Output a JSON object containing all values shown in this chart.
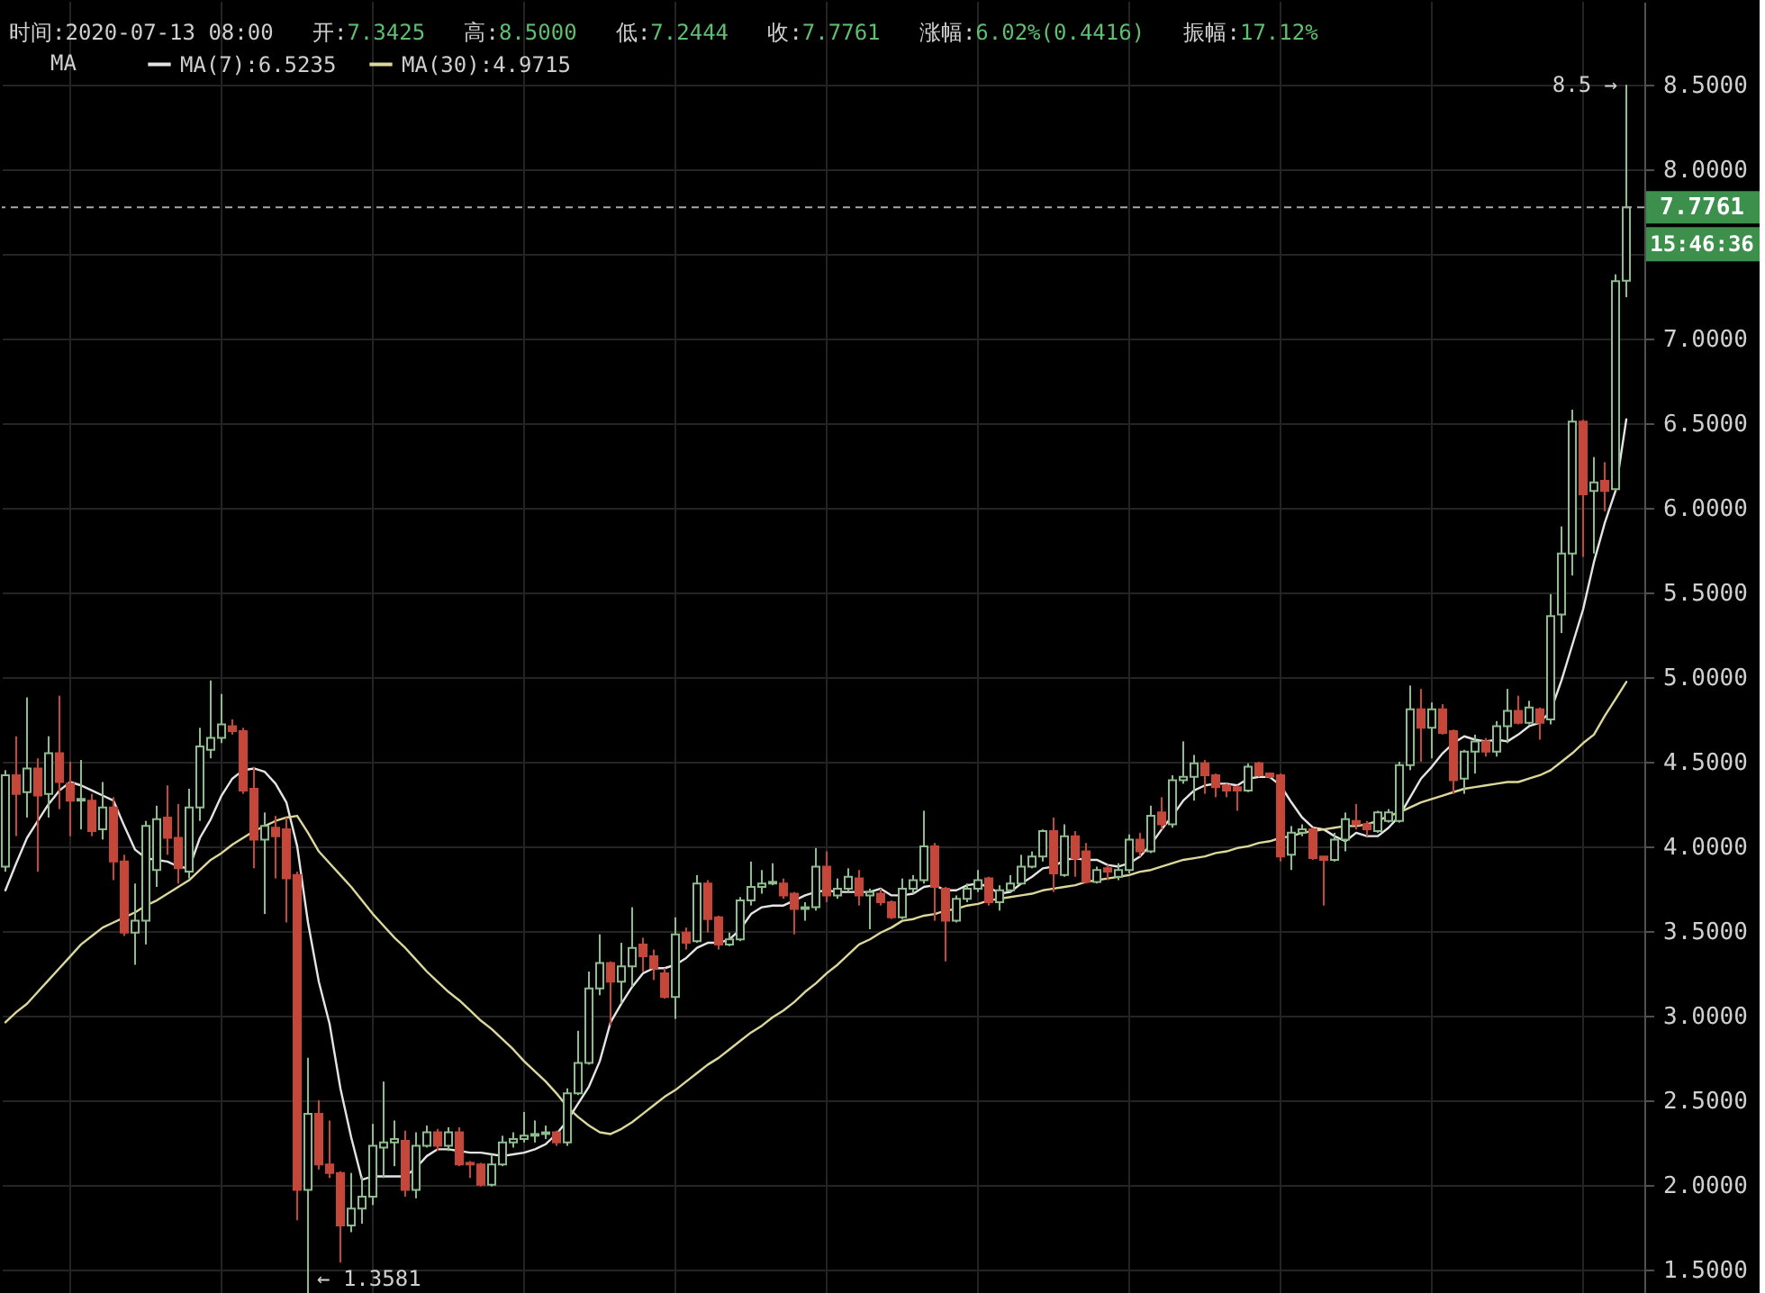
{
  "chart_data": {
    "type": "candlestick",
    "categories": [
      null,
      null,
      null,
      null,
      null,
      null,
      null,
      null,
      null,
      null,
      null,
      null,
      null,
      null,
      null,
      null,
      null,
      null,
      null,
      null,
      null,
      null,
      null,
      null,
      null,
      null,
      null,
      null,
      null,
      null,
      null,
      null,
      null,
      null,
      null,
      null,
      null,
      null,
      null,
      null,
      null,
      null,
      null,
      null,
      null,
      null,
      null,
      null,
      null,
      null,
      null,
      null,
      null,
      null,
      null,
      null,
      null,
      null,
      null,
      null,
      null,
      null,
      null,
      null,
      null,
      null,
      null,
      null,
      null,
      null,
      null,
      null,
      null,
      null,
      null,
      null,
      null,
      null,
      null,
      null,
      null,
      null,
      null,
      null,
      null,
      null,
      null,
      null,
      null,
      null,
      null,
      null,
      null,
      null,
      null,
      null,
      null,
      null,
      null,
      null,
      null,
      null,
      null,
      null,
      null,
      null,
      null,
      null,
      null,
      null,
      null,
      null,
      null,
      null,
      null,
      null,
      null,
      null,
      null,
      null,
      null,
      null,
      null,
      null,
      null,
      null,
      null,
      null,
      null,
      null,
      null,
      null,
      null,
      null,
      null,
      null,
      null,
      null,
      null,
      null,
      null,
      null,
      null,
      null,
      null,
      null,
      null,
      null,
      null,
      null,
      null
    ],
    "ohlc": [
      [
        3.88,
        4.45,
        3.85,
        4.42
      ],
      [
        4.42,
        4.65,
        4.06,
        4.31
      ],
      [
        4.32,
        4.88,
        4.17,
        4.46
      ],
      [
        4.46,
        4.52,
        3.85,
        4.3
      ],
      [
        4.31,
        4.65,
        4.17,
        4.55
      ],
      [
        4.55,
        4.89,
        4.22,
        4.38
      ],
      [
        4.37,
        4.5,
        4.06,
        4.27
      ],
      [
        4.27,
        4.51,
        4.1,
        4.28
      ],
      [
        4.27,
        4.31,
        4.06,
        4.09
      ],
      [
        4.1,
        4.38,
        4.04,
        4.23
      ],
      [
        4.23,
        4.29,
        3.8,
        3.91
      ],
      [
        3.91,
        3.95,
        3.47,
        3.49
      ],
      [
        3.49,
        3.78,
        3.3,
        3.56
      ],
      [
        3.56,
        4.15,
        3.42,
        4.12
      ],
      [
        3.86,
        4.24,
        3.76,
        4.16
      ],
      [
        4.17,
        4.36,
        3.95,
        4.05
      ],
      [
        4.05,
        4.25,
        3.78,
        3.87
      ],
      [
        3.85,
        4.34,
        3.81,
        4.23
      ],
      [
        4.23,
        4.7,
        4.15,
        4.59
      ],
      [
        4.57,
        4.98,
        4.52,
        4.64
      ],
      [
        4.64,
        4.9,
        4.61,
        4.72
      ],
      [
        4.71,
        4.75,
        4.66,
        4.68
      ],
      [
        4.68,
        4.7,
        4.31,
        4.33
      ],
      [
        4.34,
        4.47,
        3.87,
        4.04
      ],
      [
        4.04,
        4.2,
        3.6,
        4.12
      ],
      [
        4.11,
        4.18,
        3.81,
        4.06
      ],
      [
        4.1,
        4.17,
        3.55,
        3.81
      ],
      [
        3.83,
        3.85,
        1.79,
        1.97
      ],
      [
        1.97,
        2.75,
        1.3581,
        2.42
      ],
      [
        2.42,
        2.5,
        2.09,
        2.12
      ],
      [
        2.12,
        2.38,
        2.04,
        2.07
      ],
      [
        2.07,
        2.08,
        1.54,
        1.76
      ],
      [
        1.76,
        2.07,
        1.72,
        1.86
      ],
      [
        1.86,
        2.05,
        1.77,
        1.93
      ],
      [
        1.93,
        2.36,
        1.88,
        2.23
      ],
      [
        2.22,
        2.61,
        2.04,
        2.25
      ],
      [
        2.25,
        2.38,
        2.11,
        2.27
      ],
      [
        2.26,
        2.32,
        1.93,
        1.97
      ],
      [
        1.97,
        2.31,
        1.92,
        2.23
      ],
      [
        2.23,
        2.35,
        2.22,
        2.31
      ],
      [
        2.31,
        2.33,
        2.2,
        2.23
      ],
      [
        2.23,
        2.34,
        2.2,
        2.31
      ],
      [
        2.31,
        2.34,
        2.11,
        2.12
      ],
      [
        2.13,
        2.14,
        2.04,
        2.12
      ],
      [
        2.12,
        2.13,
        1.99,
        2.0
      ],
      [
        2.0,
        2.18,
        1.99,
        2.12
      ],
      [
        2.12,
        2.29,
        2.11,
        2.25
      ],
      [
        2.25,
        2.31,
        2.22,
        2.27
      ],
      [
        2.27,
        2.43,
        2.25,
        2.29
      ],
      [
        2.29,
        2.38,
        2.25,
        2.3
      ],
      [
        2.3,
        2.35,
        2.27,
        2.31
      ],
      [
        2.31,
        2.32,
        2.23,
        2.25
      ],
      [
        2.25,
        2.57,
        2.23,
        2.54
      ],
      [
        2.54,
        2.91,
        2.53,
        2.72
      ],
      [
        2.72,
        3.26,
        2.71,
        3.16
      ],
      [
        3.16,
        3.48,
        3.12,
        3.31
      ],
      [
        3.31,
        3.32,
        2.94,
        3.2
      ],
      [
        3.2,
        3.43,
        3.07,
        3.29
      ],
      [
        3.29,
        3.64,
        3.17,
        3.4
      ],
      [
        3.42,
        3.46,
        3.26,
        3.35
      ],
      [
        3.35,
        3.39,
        3.21,
        3.28
      ],
      [
        3.25,
        3.28,
        3.1,
        3.11
      ],
      [
        3.11,
        3.58,
        2.98,
        3.48
      ],
      [
        3.49,
        3.52,
        3.39,
        3.43
      ],
      [
        3.44,
        3.83,
        3.43,
        3.78
      ],
      [
        3.78,
        3.8,
        3.49,
        3.57
      ],
      [
        3.58,
        3.59,
        3.39,
        3.42
      ],
      [
        3.42,
        3.49,
        3.41,
        3.45
      ],
      [
        3.45,
        3.7,
        3.44,
        3.68
      ],
      [
        3.68,
        3.91,
        3.65,
        3.76
      ],
      [
        3.76,
        3.86,
        3.72,
        3.78
      ],
      [
        3.78,
        3.9,
        3.77,
        3.79
      ],
      [
        3.78,
        3.81,
        3.69,
        3.71
      ],
      [
        3.72,
        3.73,
        3.48,
        3.63
      ],
      [
        3.63,
        3.67,
        3.56,
        3.64
      ],
      [
        3.64,
        3.99,
        3.62,
        3.88
      ],
      [
        3.88,
        3.97,
        3.67,
        3.71
      ],
      [
        3.71,
        3.81,
        3.69,
        3.75
      ],
      [
        3.75,
        3.87,
        3.73,
        3.82
      ],
      [
        3.81,
        3.86,
        3.65,
        3.71
      ],
      [
        3.71,
        3.75,
        3.51,
        3.73
      ],
      [
        3.72,
        3.75,
        3.65,
        3.67
      ],
      [
        3.67,
        3.68,
        3.57,
        3.58
      ],
      [
        3.58,
        3.81,
        3.57,
        3.75
      ],
      [
        3.75,
        3.83,
        3.72,
        3.8
      ],
      [
        3.8,
        4.21,
        3.78,
        4.0
      ],
      [
        4.0,
        4.02,
        3.56,
        3.76
      ],
      [
        3.75,
        3.76,
        3.32,
        3.56
      ],
      [
        3.56,
        3.71,
        3.55,
        3.69
      ],
      [
        3.69,
        3.78,
        3.67,
        3.75
      ],
      [
        3.75,
        3.86,
        3.73,
        3.8
      ],
      [
        3.81,
        3.82,
        3.65,
        3.67
      ],
      [
        3.67,
        3.77,
        3.62,
        3.74
      ],
      [
        3.74,
        3.83,
        3.73,
        3.78
      ],
      [
        3.78,
        3.95,
        3.78,
        3.88
      ],
      [
        3.88,
        3.97,
        3.87,
        3.94
      ],
      [
        3.94,
        4.1,
        3.91,
        4.09
      ],
      [
        4.09,
        4.17,
        3.73,
        3.84
      ],
      [
        3.83,
        4.13,
        3.82,
        4.06
      ],
      [
        4.06,
        4.09,
        3.82,
        3.93
      ],
      [
        3.97,
        4.02,
        3.78,
        3.79
      ],
      [
        3.79,
        3.88,
        3.78,
        3.86
      ],
      [
        3.87,
        3.89,
        3.8,
        3.85
      ],
      [
        3.82,
        3.9,
        3.8,
        3.86
      ],
      [
        3.86,
        4.07,
        3.84,
        4.04
      ],
      [
        4.04,
        4.08,
        3.94,
        3.97
      ],
      [
        3.97,
        4.24,
        3.96,
        4.18
      ],
      [
        4.2,
        4.29,
        4.1,
        4.13
      ],
      [
        4.13,
        4.42,
        4.11,
        4.39
      ],
      [
        4.39,
        4.62,
        4.37,
        4.41
      ],
      [
        4.41,
        4.54,
        4.27,
        4.49
      ],
      [
        4.49,
        4.51,
        4.31,
        4.42
      ],
      [
        4.42,
        4.43,
        4.29,
        4.35
      ],
      [
        4.36,
        4.37,
        4.29,
        4.33
      ],
      [
        4.35,
        4.36,
        4.21,
        4.33
      ],
      [
        4.33,
        4.49,
        4.32,
        4.47
      ],
      [
        4.49,
        4.5,
        4.41,
        4.42
      ],
      [
        4.43,
        4.43,
        4.4,
        4.41
      ],
      [
        4.42,
        4.43,
        3.91,
        3.94
      ],
      [
        3.95,
        4.12,
        3.86,
        4.08
      ],
      [
        4.08,
        4.13,
        4.06,
        4.1
      ],
      [
        4.1,
        4.11,
        3.92,
        3.93
      ],
      [
        3.94,
        3.94,
        3.65,
        3.92
      ],
      [
        3.92,
        4.08,
        3.91,
        4.04
      ],
      [
        4.04,
        4.2,
        3.97,
        4.16
      ],
      [
        4.15,
        4.25,
        4.1,
        4.13
      ],
      [
        4.13,
        4.15,
        4.06,
        4.1
      ],
      [
        4.09,
        4.21,
        4.08,
        4.2
      ],
      [
        4.15,
        4.22,
        4.14,
        4.2
      ],
      [
        4.15,
        4.5,
        4.14,
        4.48
      ],
      [
        4.48,
        4.95,
        4.45,
        4.81
      ],
      [
        4.81,
        4.93,
        4.5,
        4.7
      ],
      [
        4.7,
        4.85,
        4.52,
        4.81
      ],
      [
        4.81,
        4.84,
        4.66,
        4.67
      ],
      [
        4.68,
        4.69,
        4.31,
        4.39
      ],
      [
        4.4,
        4.57,
        4.31,
        4.56
      ],
      [
        4.56,
        4.66,
        4.43,
        4.62
      ],
      [
        4.62,
        4.64,
        4.53,
        4.56
      ],
      [
        4.56,
        4.74,
        4.53,
        4.71
      ],
      [
        4.71,
        4.93,
        4.61,
        4.8
      ],
      [
        4.8,
        4.89,
        4.72,
        4.73
      ],
      [
        4.73,
        4.86,
        4.72,
        4.82
      ],
      [
        4.81,
        4.82,
        4.63,
        4.73
      ],
      [
        4.75,
        5.49,
        4.72,
        5.36
      ],
      [
        5.37,
        5.89,
        5.26,
        5.73
      ],
      [
        5.73,
        6.58,
        5.6,
        6.51
      ],
      [
        6.51,
        6.52,
        5.71,
        6.08
      ],
      [
        6.1,
        6.3,
        5.73,
        6.15
      ],
      [
        6.16,
        6.27,
        5.98,
        6.1
      ],
      [
        6.11,
        7.38,
        6.1,
        7.34
      ],
      [
        7.3425,
        8.5,
        7.2444,
        7.7761
      ]
    ],
    "colors": [
      "#8dbd8d",
      "#c4473a",
      "#8dbd8d",
      "#c4473a",
      "#8dbd8d",
      "#c4473a",
      "#c4473a",
      "#8dbd8d",
      "#c4473a",
      "#8dbd8d",
      "#c4473a",
      "#c4473a",
      "#8dbd8d",
      "#8dbd8d",
      "#8dbd8d",
      "#c4473a",
      "#c4473a",
      "#8dbd8d",
      "#8dbd8d",
      "#8dbd8d",
      "#8dbd8d",
      "#c4473a",
      "#c4473a",
      "#c4473a",
      "#8dbd8d",
      "#c4473a",
      "#c4473a",
      "#c4473a",
      "#8dbd8d",
      "#c4473a",
      "#c4473a",
      "#c4473a",
      "#8dbd8d",
      "#8dbd8d",
      "#8dbd8d",
      "#8dbd8d",
      "#8dbd8d",
      "#c4473a",
      "#8dbd8d",
      "#8dbd8d",
      "#c4473a",
      "#8dbd8d",
      "#c4473a",
      "#c4473a",
      "#c4473a",
      "#8dbd8d",
      "#8dbd8d",
      "#8dbd8d",
      "#8dbd8d",
      "#8dbd8d",
      "#8dbd8d",
      "#c4473a",
      "#8dbd8d",
      "#8dbd8d",
      "#8dbd8d",
      "#8dbd8d",
      "#c4473a",
      "#8dbd8d",
      "#8dbd8d",
      "#c4473a",
      "#c4473a",
      "#c4473a",
      "#8dbd8d",
      "#c4473a",
      "#8dbd8d",
      "#c4473a",
      "#c4473a",
      "#8dbd8d",
      "#8dbd8d",
      "#8dbd8d",
      "#8dbd8d",
      "#8dbd8d",
      "#c4473a",
      "#c4473a",
      "#8dbd8d",
      "#8dbd8d",
      "#c4473a",
      "#8dbd8d",
      "#8dbd8d",
      "#c4473a",
      "#8dbd8d",
      "#c4473a",
      "#c4473a",
      "#8dbd8d",
      "#8dbd8d",
      "#8dbd8d",
      "#c4473a",
      "#c4473a",
      "#8dbd8d",
      "#8dbd8d",
      "#8dbd8d",
      "#c4473a",
      "#8dbd8d",
      "#8dbd8d",
      "#8dbd8d",
      "#8dbd8d",
      "#8dbd8d",
      "#c4473a",
      "#8dbd8d",
      "#c4473a",
      "#c4473a",
      "#8dbd8d",
      "#c4473a",
      "#8dbd8d",
      "#8dbd8d",
      "#c4473a",
      "#8dbd8d",
      "#c4473a",
      "#8dbd8d",
      "#8dbd8d",
      "#8dbd8d",
      "#c4473a",
      "#c4473a",
      "#c4473a",
      "#c4473a",
      "#8dbd8d",
      "#c4473a",
      "#c4473a",
      "#c4473a",
      "#8dbd8d",
      "#8dbd8d",
      "#c4473a",
      "#c4473a",
      "#8dbd8d",
      "#8dbd8d",
      "#c4473a",
      "#c4473a",
      "#8dbd8d",
      "#8dbd8d",
      "#8dbd8d",
      "#8dbd8d",
      "#c4473a",
      "#8dbd8d",
      "#c4473a",
      "#c4473a",
      "#8dbd8d",
      "#8dbd8d",
      "#c4473a",
      "#8dbd8d",
      "#8dbd8d",
      "#c4473a",
      "#8dbd8d",
      "#c4473a",
      "#8dbd8d",
      "#8dbd8d",
      "#8dbd8d",
      "#c4473a",
      "#8dbd8d",
      "#c4473a",
      "#8dbd8d",
      "#8dbd8d"
    ],
    "series": [
      {
        "type": "line",
        "name": "MA(7):6.5235",
        "color": "#e4e4e4",
        "values": [
          3.74,
          3.9,
          4.05,
          4.15,
          4.25,
          4.33,
          4.38,
          4.36,
          4.33,
          4.3,
          4.27,
          4.12,
          3.98,
          3.93,
          3.92,
          3.91,
          3.88,
          3.87,
          4.05,
          4.16,
          4.3,
          4.4,
          4.45,
          4.46,
          4.44,
          4.37,
          4.26,
          4.0,
          3.55,
          3.2,
          2.95,
          2.57,
          2.28,
          2.03,
          2.05,
          2.05,
          2.05,
          2.05,
          2.1,
          2.17,
          2.21,
          2.21,
          2.2,
          2.19,
          2.19,
          2.18,
          2.17,
          2.18,
          2.19,
          2.21,
          2.24,
          2.3,
          2.38,
          2.48,
          2.58,
          2.73,
          2.96,
          3.07,
          3.17,
          3.25,
          3.28,
          3.28,
          3.3,
          3.34,
          3.4,
          3.43,
          3.43,
          3.45,
          3.51,
          3.6,
          3.64,
          3.65,
          3.65,
          3.68,
          3.71,
          3.73,
          3.74,
          3.73,
          3.73,
          3.73,
          3.73,
          3.75,
          3.71,
          3.71,
          3.72,
          3.76,
          3.77,
          3.74,
          3.74,
          3.77,
          3.78,
          3.76,
          3.72,
          3.73,
          3.78,
          3.82,
          3.87,
          3.88,
          3.92,
          3.93,
          3.92,
          3.92,
          3.89,
          3.88,
          3.9,
          3.94,
          4.01,
          4.1,
          4.18,
          4.27,
          4.33,
          4.36,
          4.37,
          4.37,
          4.36,
          4.4,
          4.41,
          4.41,
          4.36,
          4.26,
          4.17,
          4.11,
          4.1,
          4.06,
          4.03,
          4.08,
          4.06,
          4.06,
          4.11,
          4.18,
          4.29,
          4.4,
          4.47,
          4.55,
          4.61,
          4.65,
          4.63,
          4.62,
          4.63,
          4.62,
          4.66,
          4.71,
          4.73,
          4.8,
          4.98,
          5.19,
          5.4,
          5.68,
          5.91,
          6.1,
          6.5235
        ]
      },
      {
        "type": "line",
        "name": "MA(30):4.9715",
        "color": "#dcd79a",
        "values": [
          2.96,
          3.02,
          3.07,
          3.14,
          3.21,
          3.28,
          3.35,
          3.42,
          3.47,
          3.52,
          3.55,
          3.58,
          3.61,
          3.65,
          3.68,
          3.72,
          3.76,
          3.8,
          3.86,
          3.92,
          3.96,
          4.01,
          4.05,
          4.09,
          4.12,
          4.15,
          4.17,
          4.18,
          4.08,
          3.97,
          3.9,
          3.83,
          3.76,
          3.68,
          3.6,
          3.53,
          3.46,
          3.4,
          3.33,
          3.26,
          3.2,
          3.14,
          3.09,
          3.03,
          2.97,
          2.92,
          2.86,
          2.8,
          2.73,
          2.67,
          2.61,
          2.54,
          2.46,
          2.4,
          2.35,
          2.31,
          2.3,
          2.33,
          2.37,
          2.42,
          2.47,
          2.52,
          2.56,
          2.61,
          2.66,
          2.71,
          2.75,
          2.8,
          2.85,
          2.9,
          2.94,
          2.99,
          3.03,
          3.08,
          3.14,
          3.19,
          3.25,
          3.3,
          3.36,
          3.42,
          3.45,
          3.49,
          3.52,
          3.56,
          3.57,
          3.59,
          3.6,
          3.62,
          3.63,
          3.65,
          3.66,
          3.68,
          3.69,
          3.7,
          3.71,
          3.72,
          3.74,
          3.75,
          3.76,
          3.77,
          3.79,
          3.8,
          3.81,
          3.82,
          3.83,
          3.85,
          3.86,
          3.88,
          3.9,
          3.92,
          3.93,
          3.94,
          3.96,
          3.97,
          3.99,
          4.0,
          4.02,
          4.03,
          4.05,
          4.06,
          4.08,
          4.09,
          4.1,
          4.11,
          4.12,
          4.12,
          4.13,
          4.15,
          4.18,
          4.2,
          4.23,
          4.26,
          4.28,
          4.3,
          4.32,
          4.34,
          4.35,
          4.36,
          4.37,
          4.38,
          4.38,
          4.4,
          4.42,
          4.45,
          4.5,
          4.55,
          4.61,
          4.66,
          4.77,
          4.87,
          4.9715
        ]
      }
    ],
    "ylim": [
      1.35,
      8.99
    ],
    "yticks": [
      {
        "value": 1.5,
        "label": "1.5000"
      },
      {
        "value": 2,
        "label": "2.0000"
      },
      {
        "value": 2.5,
        "label": "2.5000"
      },
      {
        "value": 3,
        "label": "3.0000"
      },
      {
        "value": 3.5,
        "label": "3.5000"
      },
      {
        "value": 4,
        "label": "4.0000"
      },
      {
        "value": 4.5,
        "label": "4.5000"
      },
      {
        "value": 5,
        "label": "5.0000"
      },
      {
        "value": 5.5,
        "label": "5.5000"
      },
      {
        "value": 6,
        "label": "6.0000"
      },
      {
        "value": 6.5,
        "label": "6.5000"
      },
      {
        "value": 7,
        "label": "7.0000"
      },
      {
        "value": 7.5,
        "label": null
      },
      {
        "value": 8,
        "label": "8.0000"
      },
      {
        "value": 8.5,
        "label": "8.5000"
      }
    ],
    "tick_labels": "y",
    "grid": true,
    "legend": "top left",
    "legend_title": "MA",
    "ref_lines": [
      {
        "axis": "y",
        "value": 7.7761,
        "label": "7.7761",
        "color": "#a8a8a8",
        "line_style": "dashed"
      }
    ],
    "annotations": [
      "时间:2020-07-13 08:00",
      "开:7.3425",
      "高:8.5000",
      "低:7.2444",
      "收:7.7761",
      "涨幅:6.02%(0.4416)",
      "振幅:17.12%",
      "15:46:36",
      "8.5 →",
      "← 1.3581"
    ]
  }
}
